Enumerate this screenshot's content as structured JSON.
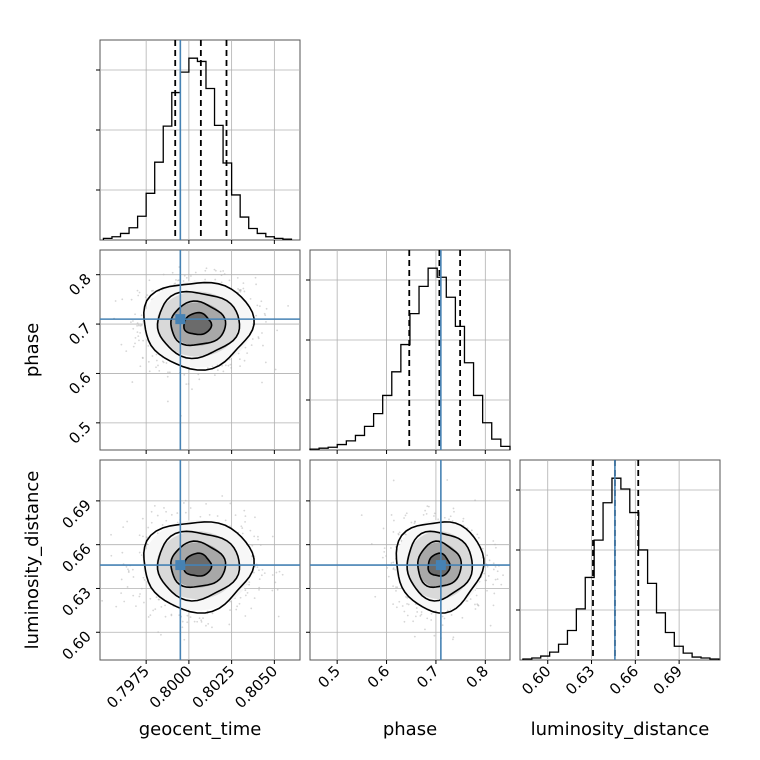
{
  "chart_data": {
    "type": "corner",
    "parameters": [
      "geocent_time",
      "phase",
      "luminosity_distance"
    ],
    "truths": {
      "geocent_time": 0.7995,
      "phase": 0.71,
      "luminosity_distance": 0.646
    },
    "colors": {
      "truth": "#4682b4",
      "hist": "#000000",
      "grid": "#b0b0b0"
    },
    "grid": true,
    "axes": {
      "geocent_time": {
        "range": [
          0.7948,
          0.8065
        ],
        "ticks": [
          0.7975,
          0.8,
          0.8025,
          0.805
        ],
        "tick_labels": [
          "0.7975",
          "0.8000",
          "0.8025",
          "0.8050"
        ]
      },
      "phase": {
        "range": [
          0.445,
          0.85
        ],
        "ticks": [
          0.5,
          0.6,
          0.7,
          0.8
        ],
        "tick_labels": [
          "0.5",
          "0.6",
          "0.7",
          "0.8"
        ]
      },
      "luminosity_distance": {
        "range": [
          0.581,
          0.718
        ],
        "ticks": [
          0.6,
          0.63,
          0.66,
          0.69
        ],
        "tick_labels": [
          "0.60",
          "0.63",
          "0.66",
          "0.69"
        ]
      }
    },
    "quantiles": {
      "geocent_time": [
        0.7992,
        0.8007,
        0.8022
      ],
      "phase": [
        0.646,
        0.707,
        0.749
      ],
      "luminosity_distance": [
        0.631,
        0.646,
        0.662
      ]
    },
    "marginals": {
      "geocent_time": {
        "bins": [
          0.795,
          0.7955,
          0.796,
          0.7965,
          0.797,
          0.7975,
          0.798,
          0.7985,
          0.799,
          0.7995,
          0.8,
          0.8005,
          0.801,
          0.8015,
          0.802,
          0.8025,
          0.803,
          0.8035,
          0.804,
          0.8045,
          0.805,
          0.8055,
          0.806
        ],
        "counts": [
          2,
          4,
          8,
          15,
          29,
          57,
          95,
          139,
          180,
          205,
          222,
          218,
          185,
          140,
          94,
          55,
          28,
          14,
          8,
          4,
          2,
          1
        ]
      },
      "phase": {
        "bins": [
          0.445,
          0.4634,
          0.4818,
          0.5002,
          0.5186,
          0.537,
          0.5554,
          0.5738,
          0.5922,
          0.6106,
          0.629,
          0.6474,
          0.6658,
          0.6842,
          0.7026,
          0.721,
          0.7394,
          0.7578,
          0.7762,
          0.7946,
          0.813,
          0.8314,
          0.85
        ],
        "counts": [
          1,
          2,
          3,
          6,
          10,
          16,
          26,
          40,
          60,
          86,
          116,
          150,
          180,
          200,
          190,
          168,
          136,
          96,
          60,
          30,
          12,
          4
        ]
      },
      "luminosity_distance": {
        "bins": [
          0.583,
          0.5891,
          0.5952,
          0.6013,
          0.6074,
          0.6135,
          0.6196,
          0.6257,
          0.6318,
          0.6379,
          0.644,
          0.6501,
          0.6562,
          0.6623,
          0.6684,
          0.6745,
          0.6806,
          0.6867,
          0.6928,
          0.6989,
          0.705,
          0.7111,
          0.7172
        ],
        "counts": [
          1,
          2,
          4,
          8,
          16,
          30,
          52,
          84,
          122,
          160,
          185,
          174,
          150,
          112,
          78,
          48,
          28,
          14,
          7,
          3,
          2,
          1
        ]
      }
    },
    "joint": {
      "phase_vs_geocent_time": {
        "center": [
          0.8005,
          0.7
        ],
        "sigma": [
          0.0016,
          0.044
        ],
        "levels": [
          0.5,
          1.0,
          1.5,
          2.0
        ]
      },
      "luminosity_distance_vs_geocent_time": {
        "center": [
          0.8005,
          0.646
        ],
        "sigma": [
          0.0016,
          0.0155
        ],
        "levels": [
          0.5,
          1.0,
          1.5,
          2.0
        ]
      },
      "luminosity_distance_vs_phase": {
        "center": [
          0.706,
          0.646
        ],
        "sigma": [
          0.044,
          0.0155
        ],
        "levels": [
          0.5,
          1.0,
          1.5,
          2.0
        ]
      }
    }
  }
}
